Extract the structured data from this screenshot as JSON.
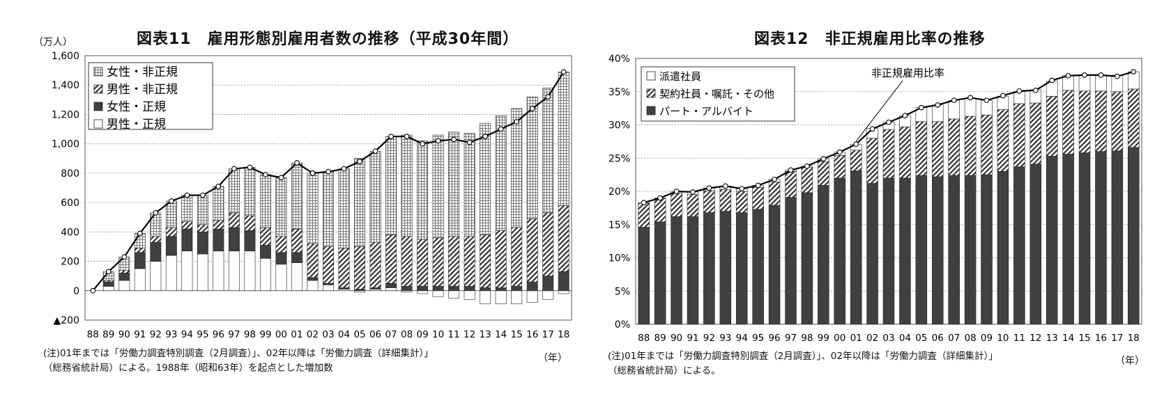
{
  "left": {
    "title": "図表11　雇用形態別雇用者数の推移（平成30年間）",
    "unit": "（万人）",
    "note_line1": "(注)01年までは「労働力調査特別調査（2月調査）」、02年以降は「労働力調査（詳細集計）」",
    "note_line2": "（総務省統計局）による。1988年（昭和63年）を起点とした増加数",
    "year_unit": "（年）"
  },
  "right": {
    "title": "図表12　非正規雇用比率の推移",
    "note_line1": "(注)01年までは「労働力調査特別調査（2月調査）」、02年以降は「労働力調査（詳細集計）」",
    "note_line2": "（総務省統計局）による。",
    "year_unit": "（年）",
    "annotation": "非正規雇用比率"
  },
  "colors": {
    "dark": "#404040",
    "white": "#ffffff",
    "grid": "#888888",
    "line": "#000000"
  },
  "chart_data": [
    {
      "type": "bar",
      "stacked": true,
      "title": "図表11　雇用形態別雇用者数の推移（平成30年間）",
      "ylabel": "（万人）",
      "xlabel": "（年）",
      "ylim": [
        -200,
        1600
      ],
      "yticks": [
        -200,
        0,
        200,
        400,
        600,
        800,
        1000,
        1200,
        1400,
        1600
      ],
      "ytick_labels": [
        "▲200",
        "0",
        "200",
        "400",
        "600",
        "800",
        "1,000",
        "1,200",
        "1,400",
        "1,600"
      ],
      "grid": true,
      "legend_position": "top-left",
      "categories": [
        "88",
        "89",
        "90",
        "91",
        "92",
        "93",
        "94",
        "95",
        "96",
        "97",
        "98",
        "99",
        "00",
        "01",
        "02",
        "03",
        "04",
        "05",
        "06",
        "07",
        "08",
        "09",
        "10",
        "11",
        "12",
        "13",
        "14",
        "15",
        "16",
        "17",
        "18"
      ],
      "series": [
        {
          "name": "男性・正規",
          "pattern": "white",
          "values": [
            0,
            30,
            70,
            150,
            200,
            240,
            270,
            250,
            270,
            270,
            270,
            220,
            180,
            190,
            70,
            40,
            10,
            -10,
            10,
            20,
            -10,
            -20,
            -40,
            -50,
            -60,
            -90,
            -90,
            -90,
            -80,
            -60,
            -20
          ]
        },
        {
          "name": "女性・正規",
          "pattern": "solid",
          "values": [
            0,
            30,
            50,
            110,
            130,
            130,
            150,
            150,
            150,
            160,
            140,
            90,
            80,
            70,
            20,
            10,
            10,
            10,
            10,
            30,
            30,
            30,
            30,
            30,
            30,
            20,
            20,
            30,
            60,
            100,
            130
          ]
        },
        {
          "name": "男性・非正規",
          "pattern": "hatch",
          "values": [
            0,
            10,
            20,
            30,
            40,
            60,
            50,
            50,
            60,
            100,
            100,
            120,
            110,
            160,
            230,
            250,
            270,
            290,
            310,
            330,
            340,
            320,
            330,
            340,
            340,
            360,
            390,
            400,
            430,
            430,
            450
          ]
        },
        {
          "name": "女性・非正規",
          "pattern": "grid",
          "values": [
            0,
            60,
            90,
            100,
            160,
            180,
            180,
            200,
            230,
            300,
            330,
            360,
            400,
            450,
            480,
            510,
            540,
            600,
            620,
            670,
            690,
            670,
            700,
            710,
            700,
            760,
            780,
            810,
            830,
            850,
            910
          ]
        }
      ],
      "line": {
        "name": "total",
        "values": [
          0,
          130,
          230,
          390,
          530,
          610,
          650,
          650,
          710,
          830,
          840,
          790,
          770,
          870,
          800,
          810,
          830,
          880,
          950,
          1050,
          1050,
          1000,
          1020,
          1030,
          1010,
          1050,
          1100,
          1150,
          1240,
          1320,
          1490
        ]
      }
    },
    {
      "type": "bar",
      "stacked": true,
      "title": "図表12　非正規雇用比率の推移",
      "xlabel": "（年）",
      "ylim": [
        0,
        40
      ],
      "yticks": [
        0,
        5,
        10,
        15,
        20,
        25,
        30,
        35,
        40
      ],
      "ytick_labels": [
        "0%",
        "5%",
        "10%",
        "15%",
        "20%",
        "25%",
        "30%",
        "35%",
        "40%"
      ],
      "grid": true,
      "legend_position": "top-left",
      "categories": [
        "88",
        "89",
        "90",
        "91",
        "92",
        "93",
        "94",
        "95",
        "96",
        "97",
        "98",
        "99",
        "00",
        "01",
        "02",
        "03",
        "04",
        "05",
        "06",
        "07",
        "08",
        "09",
        "10",
        "11",
        "12",
        "13",
        "14",
        "15",
        "16",
        "17",
        "18"
      ],
      "series": [
        {
          "name": "パート・アルバイト",
          "pattern": "solid",
          "values": [
            14.6,
            15.4,
            16.2,
            16.2,
            16.8,
            17.0,
            16.8,
            17.3,
            17.9,
            19.1,
            19.8,
            20.9,
            22.0,
            23.1,
            21.2,
            22.0,
            22.0,
            22.4,
            22.2,
            22.4,
            22.4,
            22.5,
            23.0,
            23.7,
            24.1,
            25.3,
            25.6,
            25.8,
            26.0,
            26.1,
            26.6
          ]
        },
        {
          "name": "契約社員・嘱託・その他",
          "pattern": "hatch",
          "values": [
            3.6,
            3.5,
            3.5,
            3.3,
            3.3,
            3.3,
            3.2,
            3.3,
            3.5,
            3.9,
            3.8,
            3.6,
            3.4,
            3.1,
            6.8,
            7.3,
            7.7,
            8.1,
            8.3,
            8.5,
            8.9,
            9.0,
            9.3,
            9.5,
            9.2,
            9.0,
            9.6,
            9.3,
            9.1,
            8.9,
            8.8
          ]
        },
        {
          "name": "派遣社員",
          "pattern": "white",
          "values": [
            0.1,
            0.1,
            0.3,
            0.4,
            0.4,
            0.5,
            0.4,
            0.3,
            0.4,
            0.2,
            0.2,
            0.4,
            0.5,
            0.9,
            1.5,
            1.1,
            1.7,
            2.1,
            2.5,
            2.8,
            2.7,
            2.2,
            2.0,
            1.8,
            2.0,
            2.3,
            2.2,
            2.4,
            2.4,
            2.5,
            2.6
          ]
        }
      ],
      "line": {
        "name": "非正規雇用比率",
        "values": [
          18.3,
          19.0,
          20.0,
          19.9,
          20.5,
          20.8,
          20.4,
          20.9,
          21.8,
          23.2,
          23.8,
          24.9,
          25.9,
          27.1,
          29.4,
          30.4,
          31.4,
          32.6,
          33.0,
          33.7,
          34.1,
          33.7,
          34.4,
          35.1,
          35.2,
          36.7,
          37.4,
          37.5,
          37.5,
          37.3,
          38.0
        ]
      }
    }
  ]
}
